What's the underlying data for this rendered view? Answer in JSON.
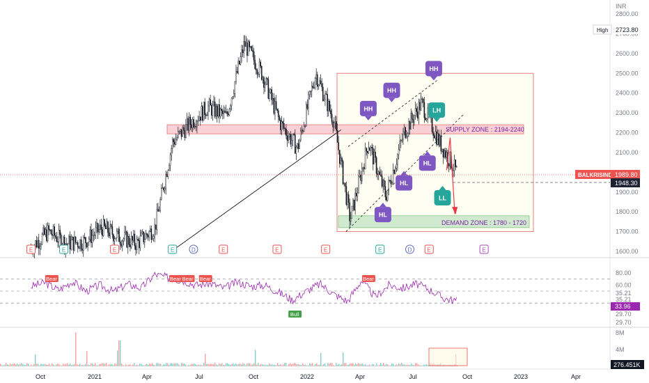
{
  "chart_data": {
    "type": "candlestick",
    "currency": "INR",
    "price_axis": {
      "ticks": [
        "2800.00",
        "2700.00",
        "2600.00",
        "2500.00",
        "2400.00",
        "2300.00",
        "2200.00",
        "2100.00",
        "2000.00",
        "1900.00",
        "1800.00",
        "1700.00",
        "1600.00"
      ],
      "min": 1560,
      "max": 2850
    },
    "price_labels": {
      "high_tag": "High",
      "high_value": "2723.80",
      "symbol_tag": "BALKRISIND",
      "last_value": "1989.80",
      "dashed_value": "1948.30"
    },
    "time_axis": {
      "labels": [
        "Oct",
        "2021",
        "Apr",
        "Jul",
        "Oct",
        "2022",
        "Apr",
        "Jul",
        "Oct",
        "2023",
        "Apr"
      ]
    },
    "approx_price_path": [
      {
        "date": "2020-09",
        "close": 1620
      },
      {
        "date": "2020-10",
        "close": 1700
      },
      {
        "date": "2020-11",
        "close": 1640
      },
      {
        "date": "2020-12",
        "close": 1650
      },
      {
        "date": "2021-01",
        "close": 1720
      },
      {
        "date": "2021-02",
        "close": 1670
      },
      {
        "date": "2021-03",
        "close": 1640
      },
      {
        "date": "2021-04",
        "close": 1720
      },
      {
        "date": "2021-05",
        "close": 2150
      },
      {
        "date": "2021-06",
        "close": 2250
      },
      {
        "date": "2021-07",
        "close": 2330
      },
      {
        "date": "2021-08",
        "close": 2280
      },
      {
        "date": "2021-09",
        "close": 2650
      },
      {
        "date": "2021-10",
        "close": 2500
      },
      {
        "date": "2021-11",
        "close": 2250
      },
      {
        "date": "2021-12",
        "close": 2120
      },
      {
        "date": "2022-01",
        "close": 2500
      },
      {
        "date": "2022-02",
        "close": 2260
      },
      {
        "date": "2022-03",
        "close": 1760
      },
      {
        "date": "2022-04",
        "close": 2150
      },
      {
        "date": "2022-05",
        "close": 1880
      },
      {
        "date": "2022-06",
        "close": 2200
      },
      {
        "date": "2022-07",
        "close": 2350
      },
      {
        "date": "2022-08",
        "close": 2150
      },
      {
        "date": "2022-09",
        "close": 1990
      }
    ],
    "zones": [
      {
        "label": "SUPPLY ZONE : 2194-2240",
        "low": 2194,
        "high": 2240,
        "color": "#f7c6cc"
      },
      {
        "label": "DEMAND ZONE : 1780 - 1720",
        "low": 1720,
        "high": 1780,
        "color": "#c8e6c9"
      }
    ],
    "pattern_markers": [
      {
        "text": "HH",
        "date": "2022-04-15",
        "price": 2248,
        "pos": "above",
        "color": "#7e57c2"
      },
      {
        "text": "HH",
        "date": "2022-05-25",
        "price": 2340,
        "pos": "above",
        "color": "#7e57c2"
      },
      {
        "text": "HH",
        "date": "2022-08-05",
        "price": 2450,
        "pos": "above",
        "color": "#7e57c2"
      },
      {
        "text": "HL",
        "date": "2022-05-10",
        "price": 1860,
        "pos": "below",
        "color": "#7e57c2"
      },
      {
        "text": "HL",
        "date": "2022-06-15",
        "price": 2020,
        "pos": "below",
        "color": "#7e57c2"
      },
      {
        "text": "HL",
        "date": "2022-07-25",
        "price": 2120,
        "pos": "below",
        "color": "#7e57c2"
      },
      {
        "text": "LH",
        "date": "2022-08-10",
        "price": 2240,
        "pos": "above",
        "color": "#26a69a"
      },
      {
        "text": "LL",
        "date": "2022-08-20",
        "price": 1945,
        "pos": "below",
        "color": "#26a69a"
      }
    ],
    "event_markers": [
      {
        "text": "E",
        "date": "2020-09-15",
        "color": "#ef5350"
      },
      {
        "text": "E",
        "date": "2020-11-10",
        "color": "#26a69a"
      },
      {
        "text": "E",
        "date": "2021-02-05",
        "color": "#ef5350"
      },
      {
        "text": "E",
        "date": "2021-05-15",
        "color": "#26a69a"
      },
      {
        "text": "D",
        "date": "2021-06-20",
        "color": "#5c6bc0"
      },
      {
        "text": "E",
        "date": "2021-08-10",
        "color": "#ef5350"
      },
      {
        "text": "E",
        "date": "2021-11-10",
        "color": "#ef5350"
      },
      {
        "text": "E",
        "date": "2022-02-01",
        "color": "#ef5350"
      },
      {
        "text": "E",
        "date": "2022-05-05",
        "color": "#26a69a"
      },
      {
        "text": "D",
        "date": "2022-06-25",
        "color": "#5c6bc0"
      },
      {
        "text": "E",
        "date": "2022-07-28",
        "color": "#ef5350"
      },
      {
        "text": "E",
        "date": "2022-10-30",
        "color": "#ab47bc"
      }
    ],
    "rsi": {
      "ticks": [
        "80.00",
        "60.00"
      ],
      "tags": [
        "35.21",
        "33.96",
        "29.70"
      ],
      "guide_labels": [
        "35.21",
        "29.70"
      ],
      "signals": [
        {
          "text": "Bear",
          "date": "2020-10-20",
          "color": "#ef5350"
        },
        {
          "text": "Bear",
          "date": "2021-05-20",
          "color": "#ef5350"
        },
        {
          "text": "Bear",
          "date": "2021-06-10",
          "color": "#ef5350"
        },
        {
          "text": "Bear",
          "date": "2021-07-10",
          "color": "#ef5350"
        },
        {
          "text": "Bull",
          "date": "2021-12-10",
          "color": "#43a047"
        },
        {
          "text": "Bear",
          "date": "2022-04-15",
          "color": "#ef5350"
        }
      ],
      "approx_values": [
        58,
        64,
        52,
        66,
        50,
        60,
        49,
        62,
        55,
        78,
        72,
        68,
        60,
        63,
        55,
        65,
        58,
        60,
        48,
        35,
        50,
        62,
        45,
        33,
        68,
        40,
        60,
        55,
        62,
        52,
        38,
        33
      ]
    },
    "volume": {
      "ticks": [
        "8M",
        "4M"
      ],
      "last_value": "276.451K"
    },
    "colors": {
      "up": "#26a69a",
      "down": "#ef5350",
      "bars": "#131722",
      "rsi_line": "#9c27b0",
      "zone_border": "#e57373",
      "arrow": "#f23645"
    }
  }
}
